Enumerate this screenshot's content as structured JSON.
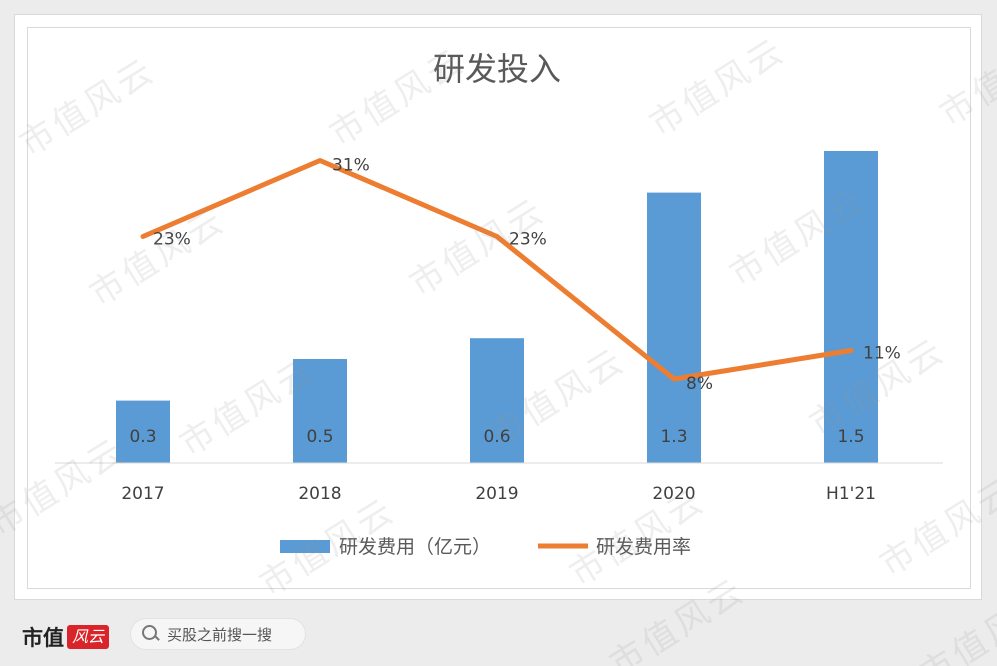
{
  "brand": {
    "name": "市值",
    "logo_text": "风云"
  },
  "search": {
    "placeholder": "买股之前搜一搜"
  },
  "watermark_text": "市值风云",
  "colors": {
    "bar": "#5b9bd5",
    "line": "#ed7d31",
    "text": "#404040",
    "axis": "#d9d9d9"
  },
  "chart_data": {
    "type": "bar",
    "title": "研发投入",
    "categories": [
      "2017",
      "2018",
      "2019",
      "2020",
      "H1'21"
    ],
    "series": [
      {
        "name": "研发费用（亿元）",
        "type": "bar",
        "axis": "left",
        "values": [
          0.3,
          0.5,
          0.6,
          1.3,
          1.5
        ],
        "labels": [
          "0.3",
          "0.5",
          "0.6",
          "1.3",
          "1.5"
        ]
      },
      {
        "name": "研发费用率",
        "type": "line",
        "axis": "right",
        "values": [
          23,
          31,
          23,
          8,
          11
        ],
        "labels": [
          "23%",
          "31%",
          "23%",
          "8%",
          "11%"
        ]
      }
    ],
    "grid": false,
    "legend_position": "bottom"
  }
}
